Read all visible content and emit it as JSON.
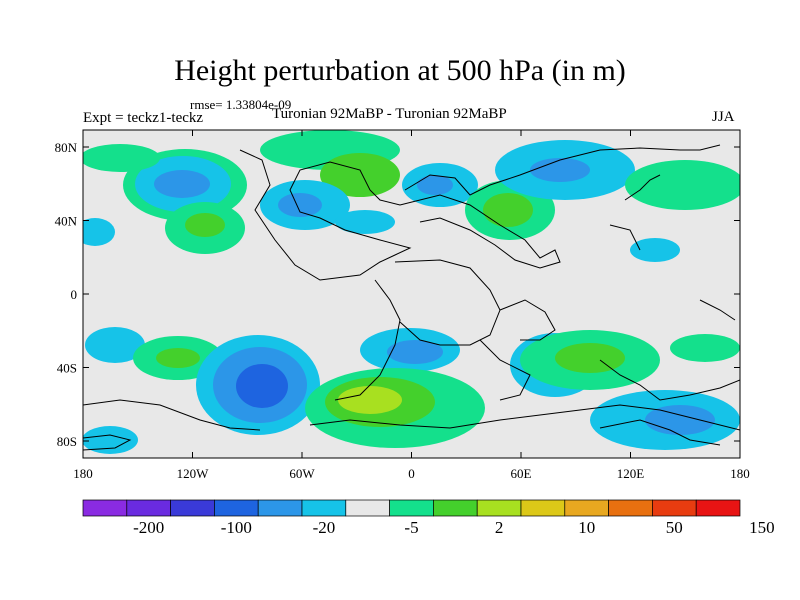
{
  "header": {
    "title": "Height perturbation at 500 hPa (in m)",
    "rmse": "rmse= 1.33804e-09",
    "expt": "Expt = teckz1-teckz",
    "subtitle": "Turonian  92MaBP - Turonian  92MaBP",
    "season": "JJA"
  },
  "axes": {
    "x_ticks": [
      "180",
      "120W",
      "60W",
      "0",
      "60E",
      "120E",
      "180"
    ],
    "y_ticks": [
      "80N",
      "40N",
      "0",
      "40S",
      "80S"
    ]
  },
  "colorbar": {
    "labels": [
      "-200",
      "-100",
      "-20",
      "-5",
      "2",
      "10",
      "50",
      "150"
    ],
    "colors": [
      "#8a2be2",
      "#6a2be0",
      "#3a3ad8",
      "#1e64e0",
      "#2c96e8",
      "#16c3e8",
      "#e8e8e8",
      "#14e08c",
      "#44d02c",
      "#a8e020",
      "#dcc818",
      "#e8a820",
      "#e87010",
      "#e83c10",
      "#e81414"
    ]
  },
  "colors": {
    "background": "#e8e8e8",
    "coast": "#000000"
  }
}
